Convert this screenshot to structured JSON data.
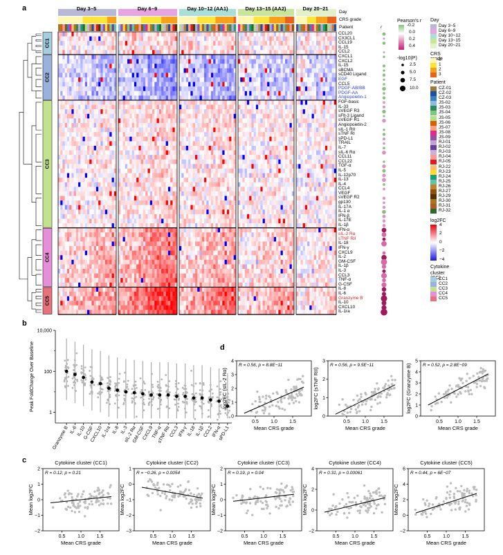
{
  "panels": {
    "a": "a",
    "b": "b",
    "c": "c",
    "d": "d"
  },
  "heatmap": {
    "days": [
      "Day 3~5",
      "Day 6~9",
      "Day 10~12 (AA1)",
      "Day 13~15 (AA2)",
      "Day 20~21"
    ],
    "row_labels": [
      "Day",
      "CRS grade",
      "Patient"
    ],
    "r_header": "r",
    "cytokine_clusters": [
      {
        "name": "CC1",
        "color": "#a6cee3",
        "cytokines": [
          "CCL20",
          "CX3CL1",
          "CCL19",
          "IL-15",
          "CCL2"
        ]
      },
      {
        "name": "CC2",
        "color": "#9ab1dd",
        "cytokines": [
          "CXCL1",
          "CXCL2",
          "IL-15",
          "sBCMA",
          "sCD40 Ligand",
          "EGF",
          "CCL5",
          "PDGF-AB/BB",
          "PDGF-AA",
          "Angiopoietin-1"
        ]
      },
      {
        "name": "CC3",
        "color": "#c3e28e",
        "cytokines": [
          "FGF-basic",
          "IL-33",
          "sVEGF R3",
          "sFlt-3 Ligand",
          "sVEGF R1",
          "Angiopoietin-2",
          "sIL-1 RII",
          "sTNF RI",
          "sPD-L1",
          "TRAIL",
          "IL-7",
          "sIL-6 Rα",
          "CCL11",
          "CCL22",
          "TGF-α",
          "IL-5",
          "IL-12p70",
          "IL-13",
          "IL-4",
          "CCL4",
          "VEGF",
          "sVEGF R2",
          "gp130",
          "IL-17A",
          "IL-1 α",
          "IFN-β",
          "IL-17E",
          "IL-1β"
        ]
      },
      {
        "name": "CC4",
        "color": "#e58fd9",
        "cytokines": [
          "IFN-α",
          "sIL-2 Rα",
          "sTNF RII",
          "IL-18",
          "IFN-γ",
          "CXCL9",
          "IL-2",
          "GM-CSF",
          "IL-1β",
          "IL-3",
          "CCL3",
          "TNF-α",
          "G-CSF"
        ]
      },
      {
        "name": "CC5",
        "color": "#e6737c",
        "cytokines": [
          "IL-8",
          "IL-6",
          "Granzyme B",
          "IL-10",
          "CXCL10",
          "IL-1ra"
        ]
      }
    ],
    "highlight_blue": [
      "EGF",
      "PDGF-AB/BB",
      "PDGF-AA",
      "Angiopoietin-1"
    ],
    "highlight_red": [
      "sIL-2 Rα",
      "sTNF RII",
      "Granzyme B"
    ]
  },
  "legend": {
    "pearson_title": "Pearson's r",
    "pearson_ticks": [
      "-0.2",
      "0.0",
      "0.2",
      "0.4"
    ],
    "logp_title": "-log10(P)",
    "logp_ticks": [
      "2.5",
      "5.0",
      "7.5",
      "10.0"
    ],
    "day_title": "Day",
    "day_items": [
      {
        "label": "Day 3~5",
        "color": "#b9b8d6"
      },
      {
        "label": "Day 6~9",
        "color": "#e8a3e0"
      },
      {
        "label": "Day 10~12",
        "color": "#a8e0d8"
      },
      {
        "label": "Day 13~15",
        "color": "#c8e59a"
      },
      {
        "label": "Day 20~21",
        "color": "#e3f0c8"
      }
    ],
    "crs_title": "CRS grade",
    "crs_items": [
      {
        "label": "0",
        "color": "#fff7b3"
      },
      {
        "label": "1",
        "color": "#fde43a"
      },
      {
        "label": "2",
        "color": "#f7a11a"
      },
      {
        "label": "3",
        "color": "#e8621b"
      }
    ],
    "patient_title": "Patient",
    "patient_items": [
      {
        "label": "CZ-01",
        "color": "#9c7a3c"
      },
      {
        "label": "CZ-02",
        "color": "#1f4f9e"
      },
      {
        "label": "CZ-03",
        "color": "#3b7fc4"
      },
      {
        "label": "JS-02",
        "color": "#8fb9e0"
      },
      {
        "label": "JS-03",
        "color": "#2e8b57"
      },
      {
        "label": "JS-04",
        "color": "#7fc97f"
      },
      {
        "label": "JS-05",
        "color": "#b2df8a"
      },
      {
        "label": "JS-06",
        "color": "#d95f02"
      },
      {
        "label": "JS-07",
        "color": "#f4a582"
      },
      {
        "label": "JS-08",
        "color": "#e7298a"
      },
      {
        "label": "JS-09",
        "color": "#984ea3"
      },
      {
        "label": "RJ-01",
        "color": "#c2a5cf"
      },
      {
        "label": "RJ-02",
        "color": "#6a3d9a"
      },
      {
        "label": "RJ-03",
        "color": "#cab2d6"
      },
      {
        "label": "RJ-04",
        "color": "#fb9a99"
      },
      {
        "label": "RJ-05",
        "color": "#e31a1c"
      },
      {
        "label": "RJ-22",
        "color": "#fdbf6f"
      },
      {
        "label": "RJ-23",
        "color": "#ffd92f"
      },
      {
        "label": "RJ-24",
        "color": "#1b9e77"
      },
      {
        "label": "RJ-25",
        "color": "#66c2a5"
      },
      {
        "label": "RJ-26",
        "color": "#bf812d"
      },
      {
        "label": "RJ-27",
        "color": "#8c510a"
      },
      {
        "label": "RJ-29",
        "color": "#543005"
      },
      {
        "label": "RJ-30",
        "color": "#a6761d"
      },
      {
        "label": "RJ-31",
        "color": "#b15928"
      },
      {
        "label": "RJ-32",
        "color": "#2a6a2a"
      }
    ],
    "fc_title": "log2FC",
    "fc_ticks": [
      "4",
      "2",
      "0",
      "−2",
      "−4"
    ],
    "cc_title_1": "Cytokine",
    "cc_title_2": "cluster (CC)",
    "cc_items": [
      {
        "label": "CC1",
        "color": "#a6cee3"
      },
      {
        "label": "CC2",
        "color": "#9ab1dd"
      },
      {
        "label": "CC3",
        "color": "#c3e28e"
      },
      {
        "label": "CC4",
        "color": "#e58fd9"
      },
      {
        "label": "CC5",
        "color": "#e6737c"
      }
    ]
  },
  "chart_data": [
    {
      "type": "scatter",
      "panel": "b",
      "ylabel": "Peak FoldChange Over Baseline",
      "yscale": "log10",
      "ylim": [
        0.3,
        10000
      ],
      "yticks": [
        "1",
        "100",
        "10,000"
      ],
      "categories": [
        "Granzyme B",
        "IL-6",
        "IL-10",
        "G-CSF",
        "CXCL10",
        "IL-1ra",
        "IL-8",
        "IL-3",
        "sIL-2 Rα",
        "GM-CSF",
        "CXCL9",
        "TNF-α",
        "sTNF RII",
        "CCL3",
        "IFN-γ",
        "IL-18",
        "IL-1β",
        "CCL2",
        "IFN-α",
        "sPD-L1"
      ],
      "medians": [
        100,
        70,
        50,
        30,
        25,
        15,
        12,
        10,
        9,
        8,
        7,
        7,
        7,
        6,
        6,
        5,
        5,
        4,
        3.5,
        2
      ]
    },
    {
      "type": "scatter",
      "panel": "d",
      "xlabel": "Mean CRS grade",
      "ylabel": "log2FC (sIL-2 Rα)",
      "annotation": "R = 0.56, p = 8.8E−11",
      "xlim": [
        0.0,
        2.0
      ],
      "ylim": [
        0,
        4
      ],
      "xticks": [
        "0.5",
        "1.0",
        "1.5"
      ],
      "yticks": [
        "0",
        "1",
        "2",
        "3",
        "4"
      ],
      "fit": {
        "x": [
          0.2,
          1.8
        ],
        "y": [
          0.2,
          2.1
        ]
      }
    },
    {
      "type": "scatter",
      "panel": "d",
      "xlabel": "Mean CRS grade",
      "ylabel": "log2FC (sTNF RII)",
      "annotation": "R = 0.56, p = 9.5E−11",
      "xlim": [
        0.0,
        2.0
      ],
      "ylim": [
        0,
        3
      ],
      "xticks": [
        "0.5",
        "1.0",
        "1.5"
      ],
      "yticks": [
        "0",
        "1",
        "2",
        "3"
      ],
      "fit": {
        "x": [
          0.2,
          1.8
        ],
        "y": [
          0.1,
          1.7
        ]
      }
    },
    {
      "type": "scatter",
      "panel": "d",
      "xlabel": "Mean CRS grade",
      "ylabel": "log2FC (Granzyme B)",
      "annotation": "R = 0.52, p = 2.8E−09",
      "xlim": [
        0.0,
        2.0
      ],
      "ylim": [
        0,
        5
      ],
      "xticks": [
        "0.5",
        "1.0",
        "1.5"
      ],
      "yticks": [
        "0",
        "1",
        "2",
        "3",
        "4",
        "5"
      ],
      "fit": {
        "x": [
          0.2,
          1.8
        ],
        "y": [
          1.0,
          3.8
        ]
      }
    },
    {
      "type": "scatter",
      "panel": "c",
      "title": "Cytokine cluster (CC1)",
      "xlabel": "Mean CRS grade",
      "ylabel": "Mean log2FC",
      "annotation": "R = 0.12, p = 0.21",
      "xlim": [
        0.0,
        2.0
      ],
      "ylim": [
        -2,
        2
      ],
      "xticks": [
        "0.5",
        "1.0",
        "1.5"
      ],
      "yticks": [
        "−2",
        "−1",
        "0",
        "1",
        "2"
      ],
      "fit": {
        "x": [
          0.2,
          1.8
        ],
        "y": [
          -0.2,
          0.2
        ]
      }
    },
    {
      "type": "scatter",
      "panel": "c",
      "title": "Cytokine cluster (CC2)",
      "xlabel": "Mean CRS grade",
      "ylabel": "Mean log2FC",
      "annotation": "R = −0.26, p = 0.0054",
      "xlim": [
        0.0,
        2.0
      ],
      "ylim": [
        -3,
        1
      ],
      "xticks": [
        "0.5",
        "1.0",
        "1.5"
      ],
      "yticks": [
        "−3",
        "−2",
        "−1",
        "0",
        "1"
      ],
      "fit": {
        "x": [
          0.2,
          1.8
        ],
        "y": [
          -0.2,
          -0.9
        ]
      }
    },
    {
      "type": "scatter",
      "panel": "c",
      "title": "Cytokine cluster (CC3)",
      "xlabel": "Mean CRS grade",
      "ylabel": "Mean log2FC",
      "annotation": "R = 0.19, p = 0.04",
      "xlim": [
        0.0,
        2.0
      ],
      "ylim": [
        -2,
        2
      ],
      "xticks": [
        "0.5",
        "1.0",
        "1.5"
      ],
      "yticks": [
        "−2",
        "−1",
        "0",
        "1",
        "2"
      ],
      "fit": {
        "x": [
          0.2,
          1.8
        ],
        "y": [
          -0.1,
          0.35
        ]
      }
    },
    {
      "type": "scatter",
      "panel": "c",
      "title": "Cytokine cluster (CC4)",
      "xlabel": "Mean CRS grade",
      "ylabel": "Mean log2FC",
      "annotation": "R = 0.31, p = 0.00061",
      "xlim": [
        0.0,
        2.0
      ],
      "ylim": [
        -2,
        4
      ],
      "xticks": [
        "0.5",
        "1.0",
        "1.5"
      ],
      "yticks": [
        "−2",
        "0",
        "2",
        "4"
      ],
      "fit": {
        "x": [
          0.2,
          1.8
        ],
        "y": [
          -0.2,
          1.2
        ]
      }
    },
    {
      "type": "scatter",
      "panel": "c",
      "title": "Cytokine cluster (CC5)",
      "xlabel": "Mean CRS grade",
      "ylabel": "Mean log2FC",
      "annotation": "R = 0.44, p = 6E−07",
      "xlim": [
        0.0,
        2.0
      ],
      "ylim": [
        -2,
        6
      ],
      "xticks": [
        "0.5",
        "1.0",
        "1.5"
      ],
      "yticks": [
        "−2",
        "0",
        "2",
        "4",
        "6"
      ],
      "fit": {
        "x": [
          0.2,
          1.8
        ],
        "y": [
          0.3,
          2.8
        ]
      }
    }
  ]
}
